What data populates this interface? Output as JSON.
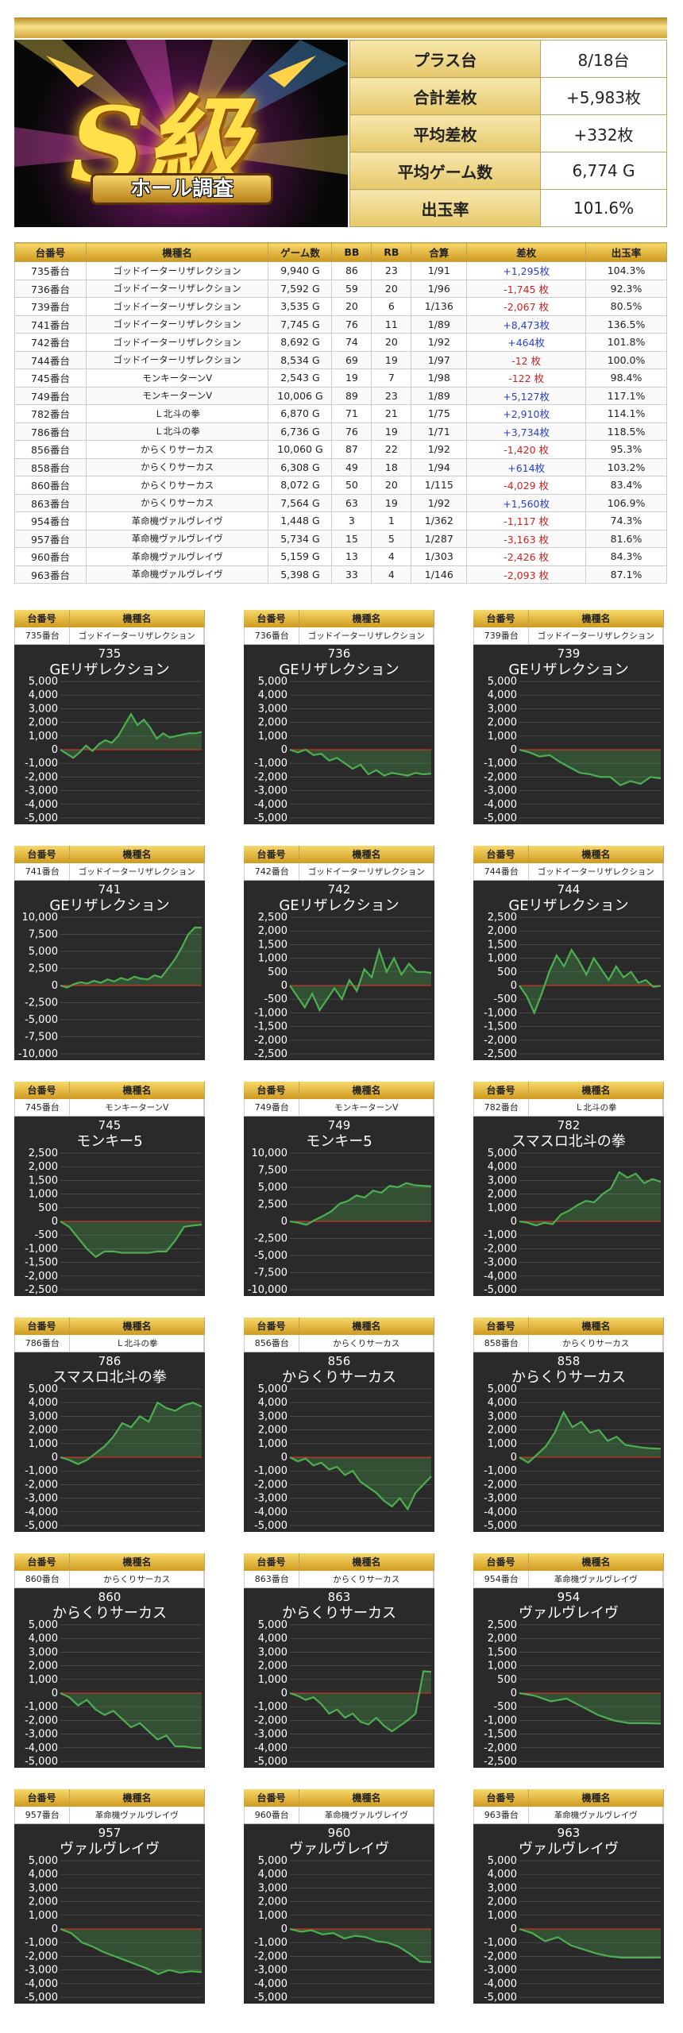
{
  "header": {
    "logo_main": "S級",
    "logo_sub": "ホール調査"
  },
  "summary": [
    {
      "label": "プラス台",
      "value": "8/18台"
    },
    {
      "label": "合計差枚",
      "value": "+5,983枚"
    },
    {
      "label": "平均差枚",
      "value": "+332枚"
    },
    {
      "label": "平均ゲーム数",
      "value": "6,774 G"
    },
    {
      "label": "出玉率",
      "value": "101.6%"
    }
  ],
  "table": {
    "columns": [
      "台番号",
      "機種名",
      "ゲーム数",
      "BB",
      "RB",
      "合算",
      "差枚",
      "出玉率"
    ],
    "rows": [
      [
        "735番台",
        "ゴッドイーターリザレクション",
        "9,940 G",
        "86",
        "23",
        "1/91",
        "+1,295枚",
        "104.3%"
      ],
      [
        "736番台",
        "ゴッドイーターリザレクション",
        "7,592 G",
        "59",
        "20",
        "1/96",
        "-1,745 枚",
        "92.3%"
      ],
      [
        "739番台",
        "ゴッドイーターリザレクション",
        "3,535 G",
        "20",
        "6",
        "1/136",
        "-2,067 枚",
        "80.5%"
      ],
      [
        "741番台",
        "ゴッドイーターリザレクション",
        "7,745 G",
        "76",
        "11",
        "1/89",
        "+8,473枚",
        "136.5%"
      ],
      [
        "742番台",
        "ゴッドイーターリザレクション",
        "8,692 G",
        "74",
        "20",
        "1/92",
        "+464枚",
        "101.8%"
      ],
      [
        "744番台",
        "ゴッドイーターリザレクション",
        "8,534 G",
        "69",
        "19",
        "1/97",
        "-12 枚",
        "100.0%"
      ],
      [
        "745番台",
        "モンキーターンV",
        "2,543 G",
        "19",
        "7",
        "1/98",
        "-122 枚",
        "98.4%"
      ],
      [
        "749番台",
        "モンキーターンV",
        "10,006 G",
        "89",
        "23",
        "1/89",
        "+5,127枚",
        "117.1%"
      ],
      [
        "782番台",
        "Ｌ北斗の拳",
        "6,870 G",
        "71",
        "21",
        "1/75",
        "+2,910枚",
        "114.1%"
      ],
      [
        "786番台",
        "Ｌ北斗の拳",
        "6,736 G",
        "76",
        "19",
        "1/71",
        "+3,734枚",
        "118.5%"
      ],
      [
        "856番台",
        "からくりサーカス",
        "10,060 G",
        "87",
        "22",
        "1/92",
        "-1,420 枚",
        "95.3%"
      ],
      [
        "858番台",
        "からくりサーカス",
        "6,308 G",
        "49",
        "18",
        "1/94",
        "+614枚",
        "103.2%"
      ],
      [
        "860番台",
        "からくりサーカス",
        "8,072 G",
        "50",
        "20",
        "1/115",
        "-4,029 枚",
        "83.4%"
      ],
      [
        "863番台",
        "からくりサーカス",
        "7,564 G",
        "63",
        "19",
        "1/92",
        "+1,560枚",
        "106.9%"
      ],
      [
        "954番台",
        "革命機ヴァルヴレイヴ",
        "1,448 G",
        "3",
        "1",
        "1/362",
        "-1,117 枚",
        "74.3%"
      ],
      [
        "957番台",
        "革命機ヴァルヴレイヴ",
        "5,734 G",
        "15",
        "5",
        "1/287",
        "-3,163 枚",
        "81.6%"
      ],
      [
        "960番台",
        "革命機ヴァルヴレイヴ",
        "5,159 G",
        "13",
        "4",
        "1/303",
        "-2,426 枚",
        "84.3%"
      ],
      [
        "963番台",
        "革命機ヴァルヴレイヴ",
        "5,398 G",
        "33",
        "4",
        "1/146",
        "-2,093 枚",
        "87.1%"
      ]
    ]
  },
  "panel_header": {
    "c1": "台番号",
    "c2": "機種名"
  },
  "colors": {
    "gold": "#e6b93a",
    "line": "#4caf50",
    "zero": "#e02020",
    "plot_bg": "#2a2a2a"
  },
  "chart_data": [
    {
      "type": "line",
      "no": "735",
      "label": "735番台",
      "model": "ゴッドイーターリザレクション",
      "title": "GEリザレクション",
      "ylim": [
        -5000,
        5000
      ],
      "ticks": [
        5000,
        4000,
        3000,
        2000,
        1000,
        0,
        -1000,
        -2000,
        -3000,
        -4000,
        -5000
      ],
      "values": [
        0,
        -300,
        -600,
        -200,
        300,
        -100,
        400,
        700,
        500,
        1000,
        1800,
        2600,
        1800,
        2200,
        1600,
        800,
        1200,
        900,
        1000,
        1100,
        1200,
        1200,
        1300
      ]
    },
    {
      "type": "line",
      "no": "736",
      "label": "736番台",
      "model": "ゴッドイーターリザレクション",
      "title": "GEリザレクション",
      "ylim": [
        -5000,
        5000
      ],
      "ticks": [
        5000,
        4000,
        3000,
        2000,
        1000,
        0,
        -1000,
        -2000,
        -3000,
        -4000,
        -5000
      ],
      "values": [
        0,
        -200,
        0,
        -400,
        -300,
        -800,
        -600,
        -1000,
        -1400,
        -1100,
        -1800,
        -1500,
        -1900,
        -1700,
        -1800,
        -1900,
        -1700,
        -1800,
        -1750
      ]
    },
    {
      "type": "line",
      "no": "739",
      "label": "739番台",
      "model": "ゴッドイーターリザレクション",
      "title": "GEリザレクション",
      "ylim": [
        -5000,
        5000
      ],
      "ticks": [
        5000,
        4000,
        3000,
        2000,
        1000,
        0,
        -1000,
        -2000,
        -3000,
        -4000,
        -5000
      ],
      "values": [
        0,
        -200,
        -500,
        -400,
        -900,
        -1300,
        -1700,
        -1800,
        -2000,
        -2000,
        -2600,
        -2300,
        -2500,
        -2000,
        -2100
      ]
    },
    {
      "type": "line",
      "no": "741",
      "label": "741番台",
      "model": "ゴッドイーターリザレクション",
      "title": "GEリザレクション",
      "ylim": [
        -10000,
        10000
      ],
      "ticks": [
        10000,
        7500,
        5000,
        2500,
        0,
        -2500,
        -5000,
        -7500,
        -10000
      ],
      "values": [
        0,
        -300,
        200,
        500,
        300,
        700,
        400,
        900,
        600,
        1100,
        800,
        1300,
        1000,
        900,
        1500,
        1200,
        2500,
        3800,
        5500,
        7500,
        8500,
        8470
      ]
    },
    {
      "type": "line",
      "no": "742",
      "label": "742番台",
      "model": "ゴッドイーターリザレクション",
      "title": "GEリザレクション",
      "ylim": [
        -2500,
        2500
      ],
      "ticks": [
        2500,
        2000,
        1500,
        1000,
        500,
        0,
        -500,
        -1000,
        -1500,
        -2000,
        -2500
      ],
      "values": [
        0,
        -400,
        -800,
        -300,
        -900,
        -500,
        -100,
        -500,
        200,
        -200,
        600,
        300,
        1300,
        500,
        1000,
        400,
        800,
        500,
        500,
        460
      ]
    },
    {
      "type": "line",
      "no": "744",
      "label": "744番台",
      "model": "ゴッドイーターリザレクション",
      "title": "GEリザレクション",
      "ylim": [
        -2500,
        2500
      ],
      "ticks": [
        2500,
        2000,
        1500,
        1000,
        500,
        0,
        -500,
        -1000,
        -1500,
        -2000,
        -2500
      ],
      "values": [
        0,
        -400,
        -1000,
        -300,
        500,
        1100,
        700,
        1300,
        900,
        400,
        1000,
        600,
        200,
        700,
        300,
        500,
        100,
        200,
        -50,
        -10
      ]
    },
    {
      "type": "line",
      "no": "745",
      "label": "745番台",
      "model": "モンキーターンV",
      "title": "モンキー5",
      "ylim": [
        -2500,
        2500
      ],
      "ticks": [
        2500,
        2000,
        1500,
        1000,
        500,
        0,
        -500,
        -1000,
        -1500,
        -2000,
        -2500
      ],
      "values": [
        0,
        -200,
        -600,
        -1000,
        -1300,
        -1100,
        -1100,
        -1150,
        -1150,
        -1150,
        -1150,
        -1100,
        -1100,
        -700,
        -200,
        -150,
        -120
      ]
    },
    {
      "type": "line",
      "no": "749",
      "label": "749番台",
      "model": "モンキーターンV",
      "title": "モンキー5",
      "ylim": [
        -10000,
        10000
      ],
      "ticks": [
        10000,
        7500,
        5000,
        2500,
        0,
        -2500,
        -5000,
        -7500,
        -10000
      ],
      "values": [
        0,
        -200,
        -500,
        200,
        800,
        1500,
        2600,
        3000,
        3800,
        3500,
        4500,
        4200,
        5200,
        5000,
        5600,
        5300,
        5200,
        5130
      ]
    },
    {
      "type": "line",
      "no": "782",
      "label": "782番台",
      "model": "Ｌ北斗の拳",
      "title": "スマスロ北斗の拳",
      "ylim": [
        -5000,
        5000
      ],
      "ticks": [
        5000,
        4000,
        3000,
        2000,
        1000,
        0,
        -1000,
        -2000,
        -3000,
        -4000,
        -5000
      ],
      "values": [
        0,
        -100,
        -300,
        -100,
        -200,
        500,
        800,
        1200,
        1500,
        1400,
        2000,
        2400,
        3600,
        3200,
        3500,
        2800,
        3100,
        2900
      ]
    },
    {
      "type": "line",
      "no": "786",
      "label": "786番台",
      "model": "Ｌ北斗の拳",
      "title": "スマスロ北斗の拳",
      "ylim": [
        -5000,
        5000
      ],
      "ticks": [
        5000,
        4000,
        3000,
        2000,
        1000,
        0,
        -1000,
        -2000,
        -3000,
        -4000,
        -5000
      ],
      "values": [
        0,
        -200,
        -500,
        -200,
        300,
        800,
        1500,
        2500,
        2200,
        3000,
        2600,
        4000,
        3600,
        3400,
        3800,
        4000,
        3700
      ]
    },
    {
      "type": "line",
      "no": "856",
      "label": "856番台",
      "model": "からくりサーカス",
      "title": "からくりサーカス",
      "ylim": [
        -5000,
        5000
      ],
      "ticks": [
        5000,
        4000,
        3000,
        2000,
        1000,
        0,
        -1000,
        -2000,
        -3000,
        -4000,
        -5000
      ],
      "values": [
        0,
        -300,
        -100,
        -600,
        -400,
        -900,
        -700,
        -1300,
        -1000,
        -1800,
        -2200,
        -2600,
        -3200,
        -3600,
        -3000,
        -3800,
        -2600,
        -2000,
        -1400
      ]
    },
    {
      "type": "line",
      "no": "858",
      "label": "858番台",
      "model": "からくりサーカス",
      "title": "からくりサーカス",
      "ylim": [
        -5000,
        5000
      ],
      "ticks": [
        5000,
        4000,
        3000,
        2000,
        1000,
        0,
        -1000,
        -2000,
        -3000,
        -4000,
        -5000
      ],
      "values": [
        0,
        -400,
        200,
        800,
        1800,
        3300,
        2200,
        2600,
        1800,
        2000,
        1200,
        1500,
        900,
        800,
        700,
        650,
        620
      ]
    },
    {
      "type": "line",
      "no": "860",
      "label": "860番台",
      "model": "からくりサーカス",
      "title": "からくりサーカス",
      "ylim": [
        -5000,
        5000
      ],
      "ticks": [
        5000,
        4000,
        3000,
        2000,
        1000,
        0,
        -1000,
        -2000,
        -3000,
        -4000,
        -5000
      ],
      "values": [
        0,
        -300,
        -900,
        -500,
        -1200,
        -1600,
        -1300,
        -1900,
        -2500,
        -2200,
        -2800,
        -3400,
        -3100,
        -3900,
        -3900,
        -4000,
        -4030
      ]
    },
    {
      "type": "line",
      "no": "863",
      "label": "863番台",
      "model": "からくりサーカス",
      "title": "からくりサーカス",
      "ylim": [
        -5000,
        5000
      ],
      "ticks": [
        5000,
        4000,
        3000,
        2000,
        1000,
        0,
        -1000,
        -2000,
        -3000,
        -4000,
        -5000
      ],
      "values": [
        0,
        -200,
        -500,
        -300,
        -800,
        -1500,
        -1200,
        -1800,
        -1500,
        -2100,
        -2300,
        -1800,
        -2400,
        -2800,
        -2400,
        -2000,
        -1500,
        1600,
        1560
      ]
    },
    {
      "type": "line",
      "no": "954",
      "label": "954番台",
      "model": "革命機ヴァルヴレイヴ",
      "title": "ヴァルヴレイヴ",
      "ylim": [
        -2500,
        2500
      ],
      "ticks": [
        2500,
        2000,
        1500,
        1000,
        500,
        0,
        -500,
        -1000,
        -1500,
        -2000,
        -2500
      ],
      "values": [
        0,
        -100,
        -300,
        -200,
        -500,
        -800,
        -1000,
        -1100,
        -1100,
        -1117
      ]
    },
    {
      "type": "line",
      "no": "957",
      "label": "957番台",
      "model": "革命機ヴァルヴレイヴ",
      "title": "ヴァルヴレイヴ",
      "ylim": [
        -5000,
        5000
      ],
      "ticks": [
        5000,
        4000,
        3000,
        2000,
        1000,
        0,
        -1000,
        -2000,
        -3000,
        -4000,
        -5000
      ],
      "values": [
        0,
        -300,
        -1000,
        -1300,
        -1700,
        -2000,
        -2300,
        -2600,
        -2900,
        -3300,
        -3000,
        -3200,
        -3100,
        -3163
      ]
    },
    {
      "type": "line",
      "no": "960",
      "label": "960番台",
      "model": "革命機ヴァルヴレイヴ",
      "title": "ヴァルヴレイヴ",
      "ylim": [
        -5000,
        5000
      ],
      "ticks": [
        5000,
        4000,
        3000,
        2000,
        1000,
        0,
        -1000,
        -2000,
        -3000,
        -4000,
        -5000
      ],
      "values": [
        0,
        -200,
        -100,
        -400,
        -300,
        -700,
        -500,
        -600,
        -900,
        -1000,
        -1300,
        -1800,
        -2400,
        -2426
      ]
    },
    {
      "type": "line",
      "no": "963",
      "label": "963番台",
      "model": "革命機ヴァルヴレイヴ",
      "title": "ヴァルヴレイヴ",
      "ylim": [
        -5000,
        5000
      ],
      "ticks": [
        5000,
        4000,
        3000,
        2000,
        1000,
        0,
        -1000,
        -2000,
        -3000,
        -4000,
        -5000
      ],
      "values": [
        0,
        -300,
        -900,
        -600,
        -1200,
        -1500,
        -1800,
        -2000,
        -2100,
        -2100,
        -2100,
        -2093
      ]
    }
  ]
}
